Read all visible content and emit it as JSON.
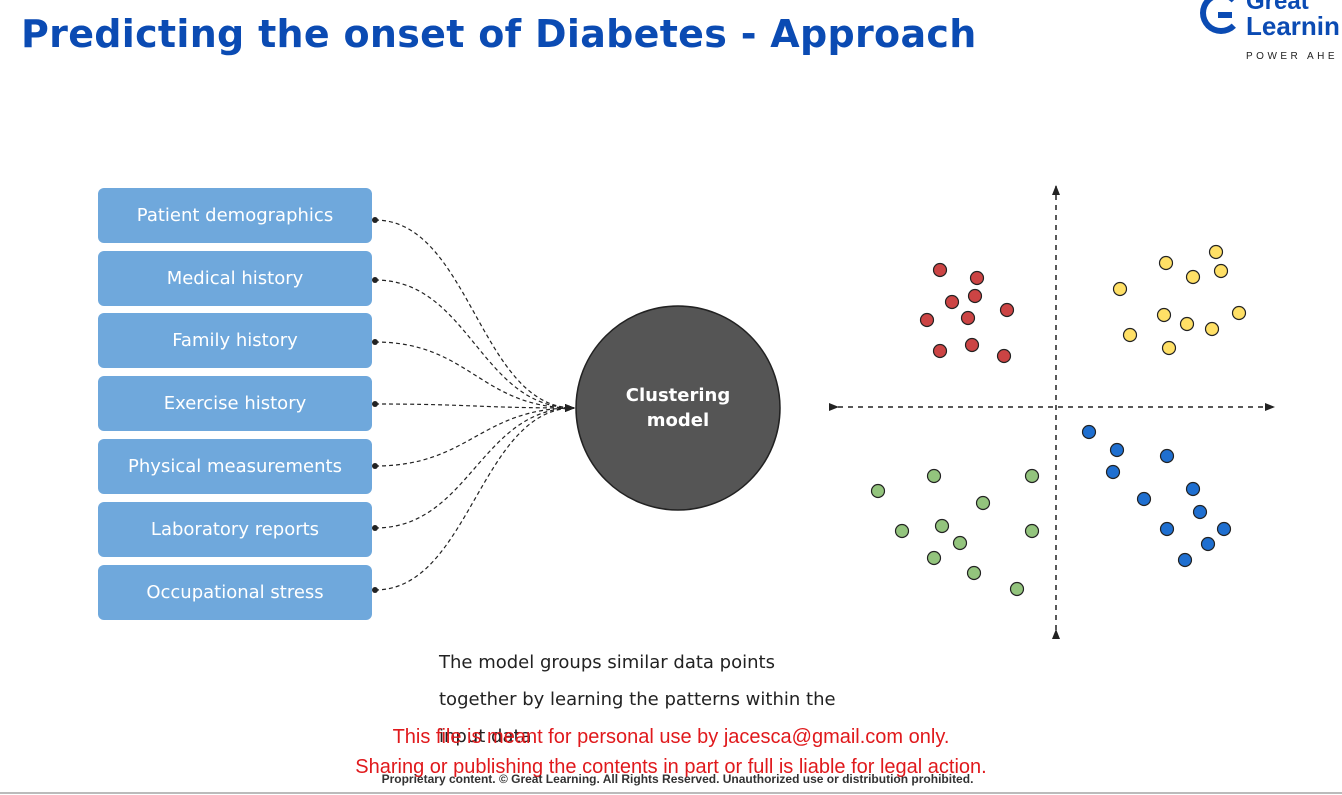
{
  "header": {
    "title": "Predicting the onset of Diabetes - Approach"
  },
  "logo": {
    "line1": "Great",
    "line2": "Learnin",
    "tagline": "POWER AHE",
    "brand_color": "#0b4bb3"
  },
  "inputs": [
    "Patient demographics",
    "Medical history",
    "Family history",
    "Exercise history",
    "Physical measurements",
    "Laboratory reports",
    "Occupational stress"
  ],
  "model": {
    "line1": "Clustering",
    "line2": "model",
    "fill_color": "#555555"
  },
  "clusters": [
    {
      "name": "red",
      "color": "#cc4444",
      "point_count": 11
    },
    {
      "name": "yellow",
      "color": "#ffe066",
      "point_count": 12
    },
    {
      "name": "green",
      "color": "#93c47d",
      "point_count": 14
    },
    {
      "name": "blue",
      "color": "#1f6fd0",
      "point_count": 12
    }
  ],
  "caption": {
    "line1": "The model groups similar data points",
    "line2": "together by learning the patterns within the",
    "line3": "input data"
  },
  "watermark": {
    "line1": "This file is meant for personal use by jacesca@gmail.com only.",
    "line2": "Sharing or publishing the contents in part or full is liable for legal action."
  },
  "footer": {
    "text": "Proprietary content. © Great Learning. All Rights Reserved. Unauthorized use or distribution prohibited."
  }
}
